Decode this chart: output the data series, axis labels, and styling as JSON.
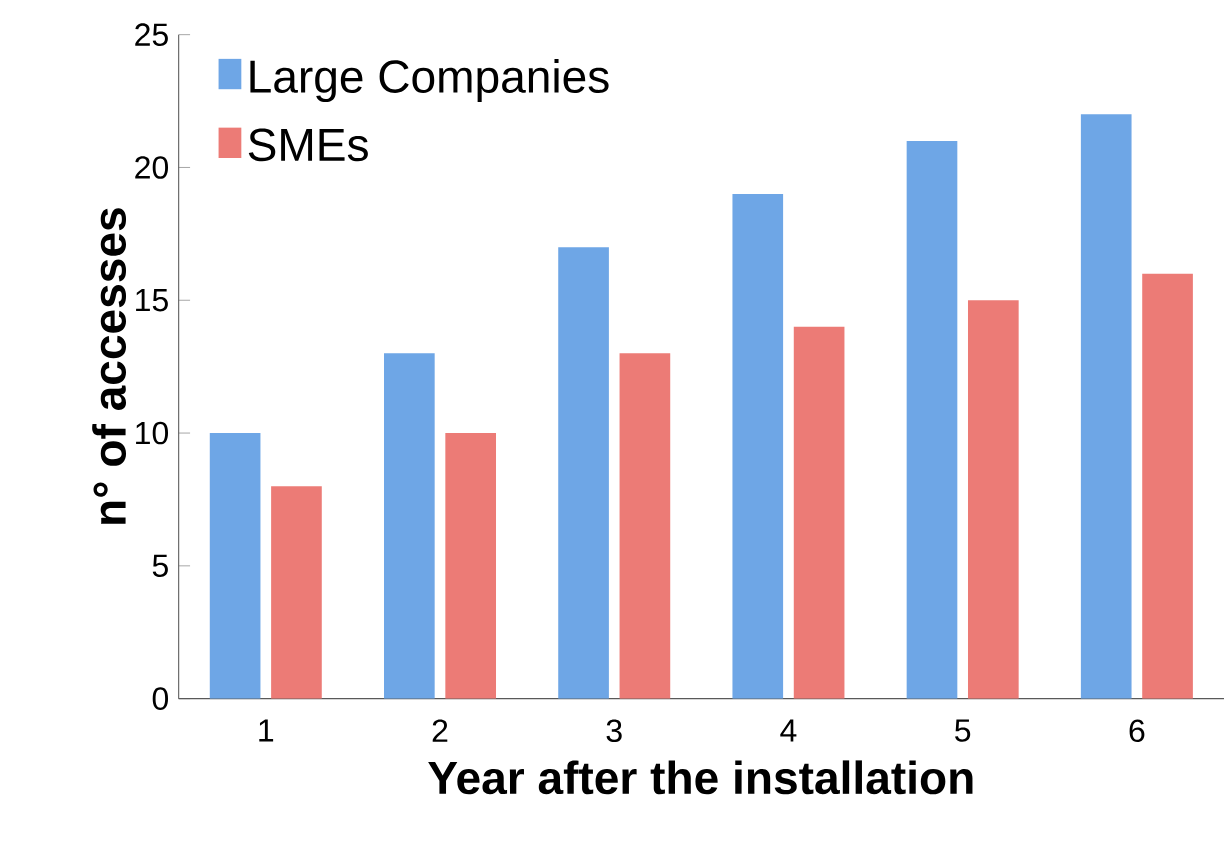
{
  "chart_data": {
    "type": "bar",
    "xlabel": "Year after the installation",
    "ylabel": "n° of accesses",
    "categories": [
      "1",
      "2",
      "3",
      "4",
      "5",
      "6"
    ],
    "series": [
      {
        "name": "Large Companies",
        "color": "#6ea6e6",
        "values": [
          10,
          13,
          17,
          19,
          21,
          22
        ]
      },
      {
        "name": "SMEs",
        "color": "#ec7b76",
        "values": [
          8,
          10,
          13,
          14,
          15,
          16
        ]
      }
    ],
    "ylim": [
      0,
      25
    ],
    "yticks": [
      0,
      5,
      10,
      15,
      20,
      25
    ],
    "grid": false,
    "legend": "top left"
  }
}
